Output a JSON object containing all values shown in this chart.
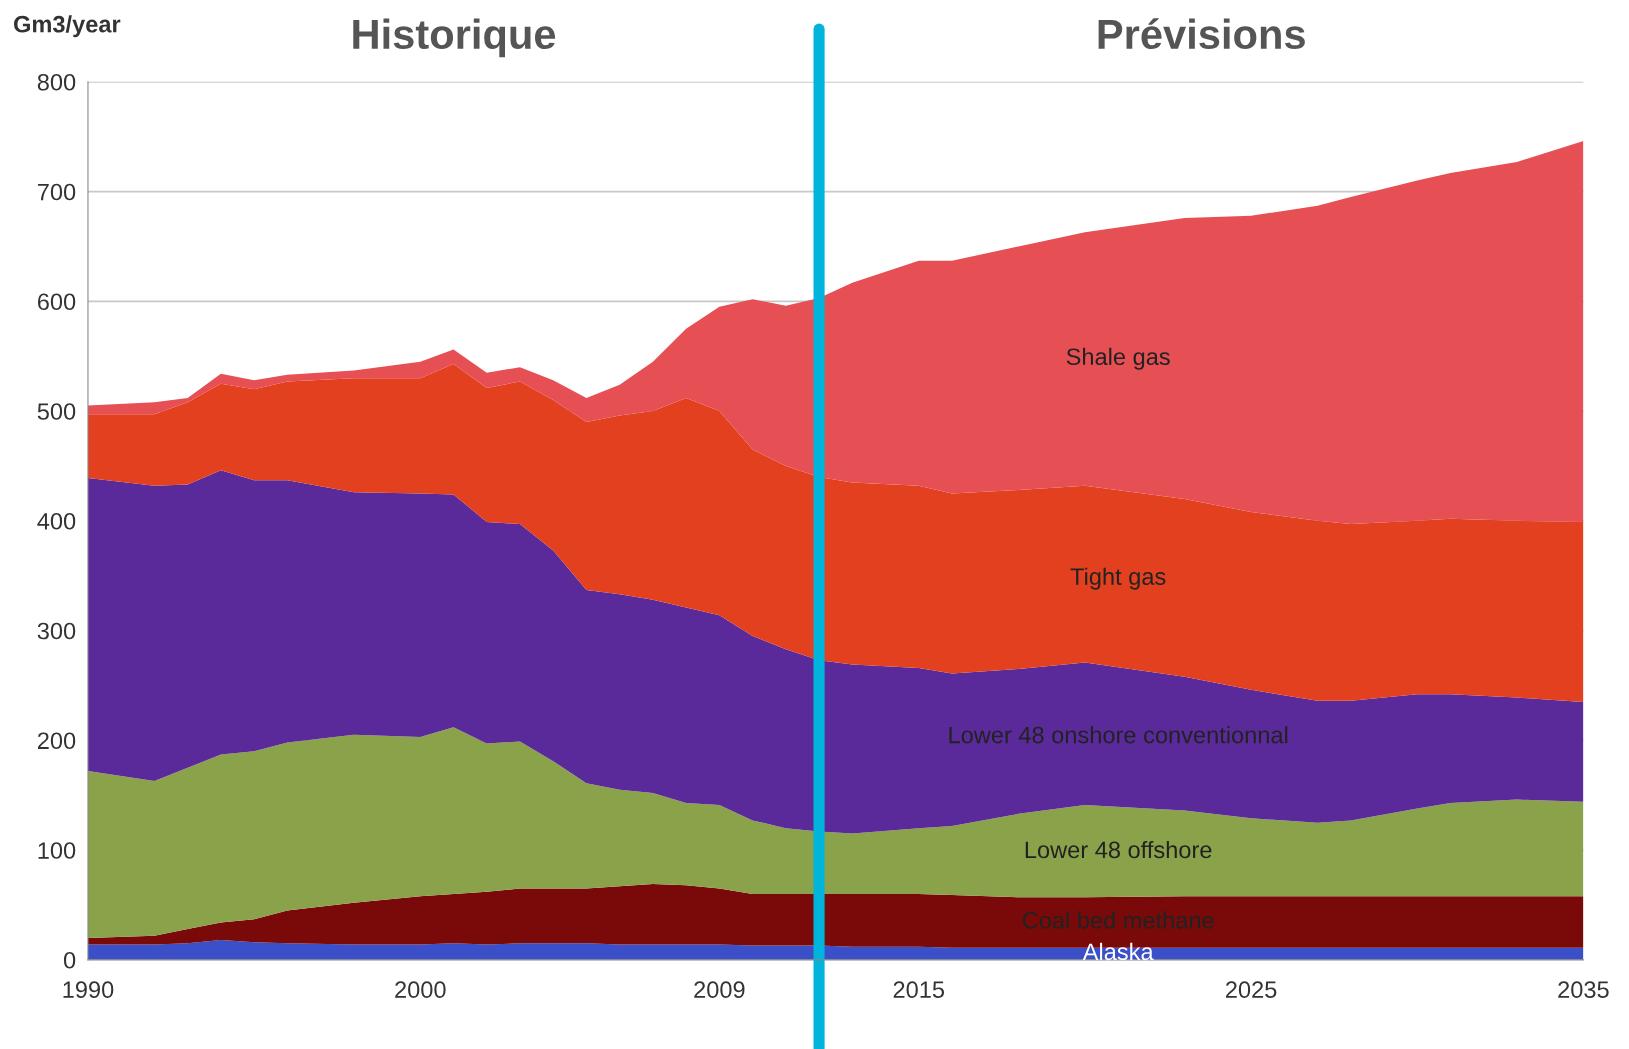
{
  "chart_data": {
    "type": "area",
    "stacked": true,
    "ylabel": "Gm3/year",
    "x": [
      1990,
      1992,
      1993,
      1994,
      1995,
      1996,
      1998,
      2000,
      2001,
      2002,
      2003,
      2004,
      2005,
      2006,
      2007,
      2008,
      2009,
      2010,
      2011,
      2012,
      2013,
      2015,
      2016,
      2018,
      2020,
      2023,
      2025,
      2027,
      2028,
      2030,
      2031,
      2033,
      2035
    ],
    "series": [
      {
        "name": "Alaska",
        "color": "#3a4fc8",
        "values": [
          14,
          14,
          15,
          18,
          16,
          15,
          14,
          14,
          15,
          14,
          15,
          15,
          15,
          14,
          14,
          14,
          14,
          13,
          13,
          13,
          12,
          12,
          11,
          11,
          11,
          11,
          11,
          11,
          11,
          11,
          11,
          11,
          11
        ]
      },
      {
        "name": "Coal bed methane",
        "color": "#7a0a0a",
        "values": [
          6,
          8,
          13,
          16,
          21,
          30,
          38,
          44,
          45,
          48,
          50,
          50,
          50,
          53,
          55,
          54,
          51,
          47,
          47,
          47,
          48,
          48,
          48,
          46,
          46,
          47,
          47,
          47,
          47,
          47,
          47,
          47,
          47
        ]
      },
      {
        "name": "Lower 48 offshore",
        "color": "#8aa24a",
        "values": [
          152,
          141,
          147,
          153,
          153,
          153,
          153,
          145,
          152,
          135,
          134,
          116,
          96,
          88,
          83,
          75,
          76,
          67,
          60,
          57,
          55,
          60,
          63,
          76,
          84,
          78,
          71,
          67,
          69,
          80,
          85,
          88,
          86
        ]
      },
      {
        "name": "Lower 48 onshore conventionnal",
        "color": "#5a2a9a",
        "values": [
          267,
          269,
          258,
          259,
          247,
          239,
          221,
          222,
          212,
          202,
          198,
          192,
          176,
          178,
          176,
          178,
          173,
          168,
          163,
          156,
          154,
          146,
          139,
          132,
          130,
          122,
          117,
          111,
          109,
          104,
          99,
          93,
          91
        ]
      },
      {
        "name": "Tight gas",
        "color": "#e2401e",
        "values": [
          58,
          65,
          75,
          79,
          83,
          90,
          104,
          105,
          119,
          122,
          130,
          137,
          153,
          163,
          172,
          191,
          186,
          170,
          167,
          167,
          166,
          166,
          164,
          163,
          161,
          162,
          162,
          164,
          161,
          158,
          160,
          161,
          164
        ]
      },
      {
        "name": "Shale gas",
        "color": "#e65055",
        "values": [
          8,
          11,
          4,
          9,
          8,
          6,
          7,
          15,
          13,
          14,
          13,
          18,
          22,
          28,
          45,
          63,
          95,
          137,
          146,
          163,
          182,
          205,
          212,
          222,
          231,
          256,
          270,
          287,
          298,
          310,
          315,
          327,
          347
        ]
      }
    ],
    "xlim": [
      1990,
      2035
    ],
    "xticks": [
      1990,
      2000,
      2009,
      2015,
      2025,
      2035
    ],
    "ylim": [
      0,
      800
    ],
    "yticks": [
      0,
      100,
      200,
      300,
      400,
      500,
      600,
      700,
      800
    ],
    "grid": "y",
    "legend": false,
    "ref_lines": [
      {
        "axis": "x",
        "value": 2012,
        "color": "#00b4dc"
      }
    ],
    "annotations": [
      "Historique",
      "Prévisions"
    ]
  }
}
